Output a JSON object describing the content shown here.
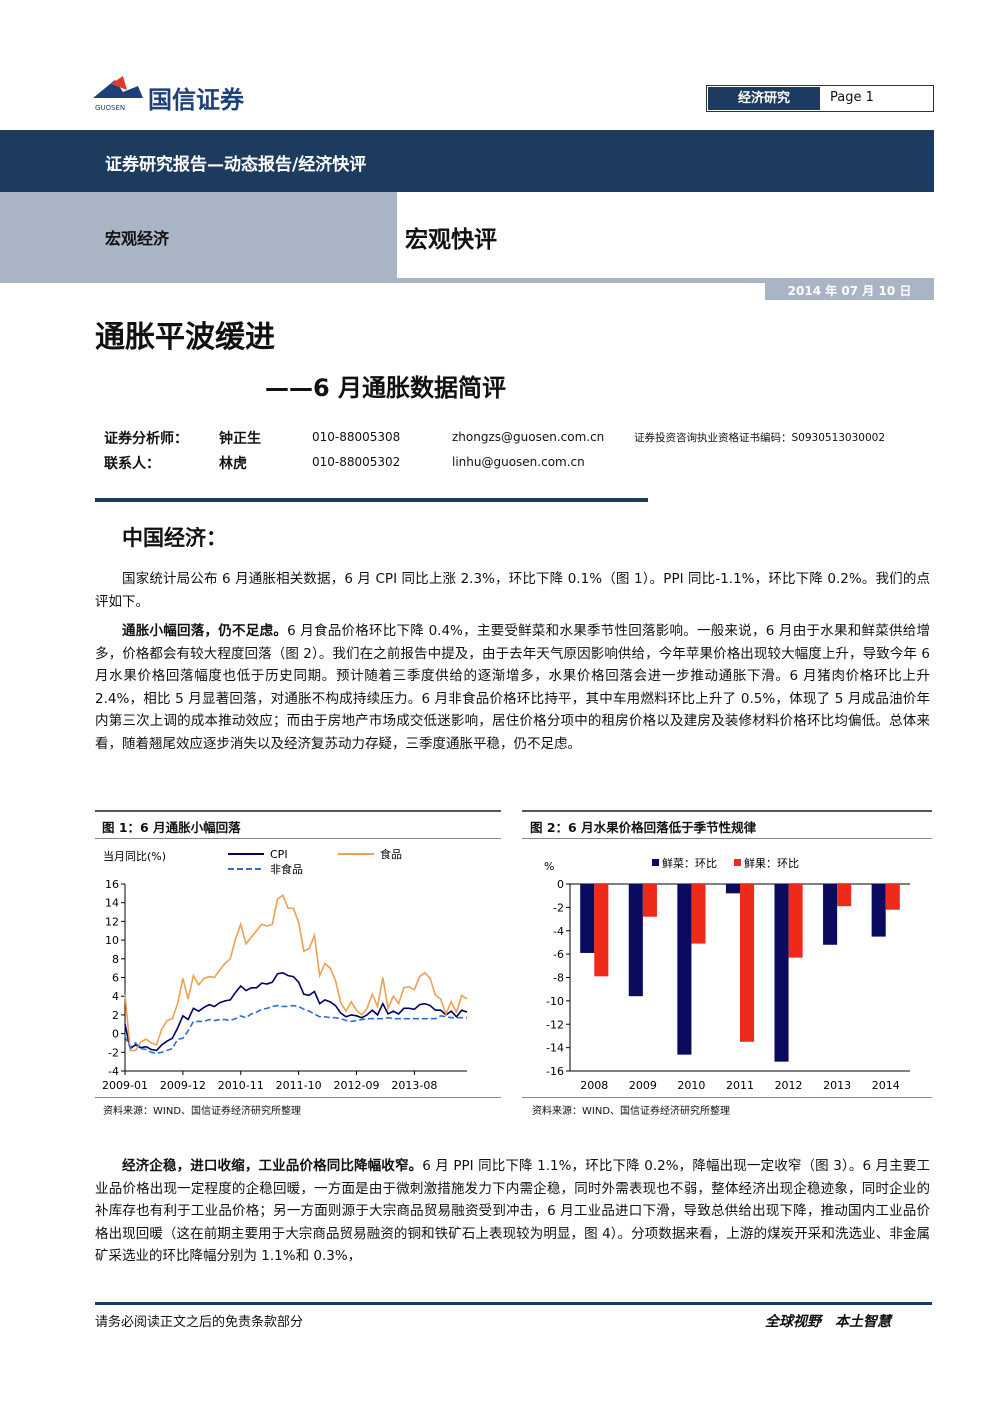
{
  "header": {
    "logo_text": "国信证券",
    "logo_sub": "GUOSEN",
    "tag": "经济研究",
    "page": "Page 1"
  },
  "banner": "证券研究报告—动态报告/经济快评",
  "category_left": "宏观经济",
  "category_right": "宏观快评",
  "date": "2014 年 07 月 10 日",
  "title": "通胀平波缓进",
  "subtitle": "——6 月通胀数据简评",
  "analysts": [
    [
      "证券分析师：",
      "钟正生",
      "010-88005308",
      "zhongzs@guosen.com.cn",
      "证券投资咨询执业资格证书编码：S0930513030002"
    ],
    [
      "联系人：",
      "林虎",
      "010-88005302",
      "linhu@guosen.com.cn"
    ]
  ],
  "section": "中国经济：",
  "paragraphs": [
    {
      "text": "国家统计局公布 6 月通胀相关数据，6 月 CPI 同比上涨 2.3%，环比下降 0.1%（图 1）。PPI 同比-1.1%，环比下降 0.2%。我们的点评如下。"
    },
    {
      "lead": "通胀小幅回落，仍不足虑。",
      "text": "6 月食品价格环比下降 0.4%，主要受鲜菜和水果季节性回落影响。一般来说，6 月由于水果和鲜菜供给增多，价格都会有较大程度回落（图 2）。我们在之前报告中提及，由于去年天气原因影响供给，今年苹果价格出现较大幅度上升，导致今年 6 月水果价格回落幅度也低于历史同期。预计随着三季度供给的逐渐增多，水果价格回落会进一步推动通胀下滑。6 月猪肉价格环比上升 2.4%，相比 5 月显著回落，对通胀不构成持续压力。6 月非食品价格环比持平，其中车用燃料环比上升了 0.5%，体现了 5 月成品油价年内第三次上调的成本推动效应；而由于房地产市场成交低迷影响，居住价格分项中的租房价格以及建房及装修材料价格环比均偏低。总体来看，随着翘尾效应逐步消失以及经济复苏动力存疑，三季度通胀平稳，仍不足虑。"
    },
    {
      "lead": "经济企稳，进口收缩，工业品价格同比降幅收窄。",
      "text": "6 月 PPI 同比下降 1.1%，环比下降 0.2%，降幅出现一定收窄（图 3）。6 月主要工业品价格出现一定程度的企稳回暖，一方面是由于微刺激措施发力下内需企稳，同时外需表现也不弱，整体经济出现企稳迹象，同时企业的补库存也有利于工业品价格；另一方面则源于大宗商品贸易融资受到冲击，6 月工业品进口下滑，导致总供给出现下降，推动国内工业品价格出现回暖（这在前期主要用于大宗商品贸易融资的铜和铁矿石上表现较为明显，图 4）。分项数据来看，上游的煤炭开采和洗选业、非金属矿采选业的环比降幅分别为 1.1%和 0.3%，"
    }
  ],
  "chart_data": [
    {
      "type": "line",
      "title": "图 1：6 月通胀小幅回落",
      "y_label": "当月同比(%)",
      "source": "资料来源：WIND、国信证券经济研究所整理",
      "categories": [
        "2009-01",
        null,
        null,
        null,
        null,
        null,
        null,
        null,
        null,
        null,
        null,
        "2009-12",
        null,
        null,
        null,
        null,
        null,
        null,
        null,
        null,
        null,
        null,
        "2010-11",
        null,
        null,
        null,
        null,
        null,
        null,
        null,
        null,
        null,
        null,
        "2011-10",
        null,
        null,
        null,
        null,
        null,
        null,
        null,
        null,
        null,
        null,
        "2012-09",
        null,
        null,
        null,
        null,
        null,
        null,
        null,
        null,
        null,
        null,
        "2013-08",
        null,
        null,
        null,
        null,
        null,
        null,
        null,
        null,
        null,
        null
      ],
      "series": [
        {
          "name": "CPI",
          "color": "#000066",
          "dash": false,
          "values": [
            1.0,
            -1.6,
            -1.2,
            -1.5,
            -1.4,
            -1.7,
            -1.8,
            -1.2,
            -0.8,
            -0.5,
            0.6,
            1.9,
            1.5,
            2.7,
            2.4,
            2.8,
            3.1,
            2.9,
            3.3,
            3.5,
            3.6,
            4.4,
            5.1,
            4.6,
            4.9,
            4.9,
            5.4,
            5.3,
            5.5,
            6.4,
            6.5,
            6.2,
            6.1,
            5.5,
            4.2,
            4.1,
            4.5,
            3.2,
            3.6,
            3.4,
            3.0,
            2.2,
            1.8,
            2.0,
            1.9,
            1.7,
            2.0,
            2.5,
            2.0,
            3.2,
            2.1,
            2.4,
            2.1,
            2.7,
            2.7,
            2.6,
            3.1,
            3.2,
            3.0,
            2.5,
            2.5,
            2.0,
            2.4,
            1.8,
            2.5,
            2.3
          ]
        },
        {
          "name": "食品",
          "color": "#f0a050",
          "dash": false,
          "values": [
            4.2,
            -1.8,
            -1.8,
            -0.9,
            -0.6,
            -1.0,
            -1.2,
            0.5,
            1.4,
            1.6,
            3.2,
            5.9,
            3.7,
            6.2,
            5.2,
            5.9,
            6.1,
            6.0,
            6.8,
            7.5,
            8.0,
            10.1,
            11.7,
            9.6,
            10.3,
            11.0,
            11.7,
            11.5,
            11.7,
            14.4,
            14.8,
            13.4,
            13.4,
            11.9,
            8.8,
            9.1,
            10.5,
            6.2,
            7.5,
            7.0,
            5.7,
            3.3,
            2.4,
            3.4,
            2.5,
            2.0,
            2.7,
            4.2,
            2.9,
            6.0,
            2.7,
            4.0,
            3.2,
            4.9,
            5.0,
            4.7,
            6.1,
            6.5,
            5.9,
            4.1,
            3.7,
            2.1,
            3.4,
            2.3,
            4.1,
            3.7
          ]
        },
        {
          "name": "非食品",
          "color": "#2a6fd6",
          "dash": true,
          "values": [
            -0.3,
            -1.5,
            -1.0,
            -1.6,
            -1.7,
            -2.0,
            -2.1,
            -2.0,
            -1.8,
            -1.6,
            -0.6,
            -0.5,
            0.3,
            1.3,
            1.3,
            1.3,
            1.5,
            1.4,
            1.5,
            1.5,
            1.4,
            1.6,
            1.9,
            1.7,
            2.1,
            2.3,
            2.6,
            2.7,
            2.9,
            3.0,
            2.9,
            2.9,
            3.0,
            2.9,
            2.6,
            2.4,
            2.1,
            1.8,
            1.8,
            1.7,
            1.7,
            1.6,
            1.4,
            1.3,
            1.4,
            1.5,
            1.6,
            1.6,
            1.6,
            1.6,
            1.7,
            1.6,
            1.6,
            1.6,
            1.6,
            1.6,
            1.6,
            1.6,
            1.6,
            1.6,
            1.9,
            1.8,
            1.7,
            1.7,
            1.7,
            1.7
          ]
        }
      ],
      "ylim": [
        -4,
        16
      ],
      "yticks": [
        -4,
        -2,
        0,
        2,
        4,
        6,
        8,
        10,
        12,
        14,
        16
      ]
    },
    {
      "type": "bar",
      "title": "图 2：6 月水果价格回落低于季节性规律",
      "y_label": "%",
      "source": "资料来源：WIND、国信证券经济研究所整理",
      "categories": [
        "2008",
        "2009",
        "2010",
        "2011",
        "2012",
        "2013",
        "2014"
      ],
      "series": [
        {
          "name": "鲜菜：环比",
          "color": "#0a0a5e",
          "values": [
            -5.9,
            -9.6,
            -14.6,
            -0.8,
            -15.2,
            -5.2,
            -4.5
          ]
        },
        {
          "name": "鲜果：环比",
          "color": "#ee2a1b",
          "values": [
            -7.9,
            -2.8,
            -5.1,
            -13.5,
            -6.3,
            -1.9,
            -2.2
          ]
        }
      ],
      "ylim": [
        -16,
        0
      ],
      "yticks": [
        -16,
        -14,
        -12,
        -10,
        -8,
        -6,
        -4,
        -2,
        0
      ]
    }
  ],
  "footer": {
    "left": "请务必阅读正文之后的免责条款部分",
    "right": "全球视野　本土智慧"
  }
}
